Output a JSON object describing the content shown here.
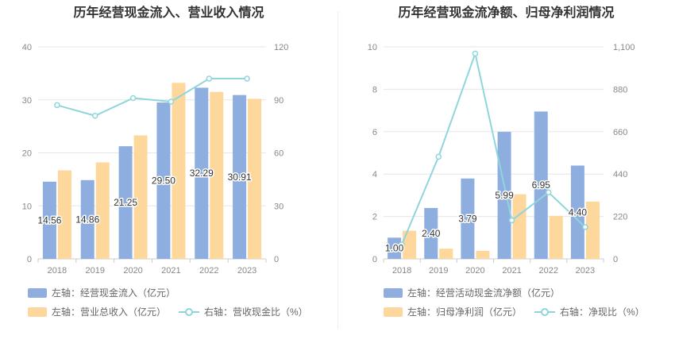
{
  "charts": [
    {
      "title": "历年经营现金流入、营业收入情况",
      "legend": {
        "bar1": "左轴：经营现金流入（亿元）",
        "bar2": "左轴：营业总收入（亿元）",
        "line": "右轴：营收现金比（%）"
      }
    },
    {
      "title": "历年经营现金流净额、归母净利润情况",
      "legend": {
        "bar1": "左轴：经营活动现金流净额（亿元）",
        "bar2": "左轴：归母净利润（亿元）",
        "line": "右轴：净现比（%）"
      }
    }
  ],
  "colors": {
    "bar1": "#8eaedf",
    "bar2": "#fdd79c",
    "line": "#8fd6dc",
    "grid": "#e6e6e6",
    "axis": "#cccccc",
    "tick": "#888888"
  },
  "chart_data": [
    {
      "type": "bar",
      "categories": [
        "2018",
        "2019",
        "2020",
        "2021",
        "2022",
        "2023"
      ],
      "series": [
        {
          "name": "左轴：经营现金流入（亿元）",
          "axis": "left",
          "values": [
            14.56,
            14.86,
            21.25,
            29.5,
            32.29,
            30.91
          ]
        },
        {
          "name": "左轴：营业总收入（亿元）",
          "axis": "left",
          "values": [
            16.7,
            18.2,
            23.3,
            33.2,
            31.5,
            30.2
          ]
        },
        {
          "name": "右轴：营收现金比（%）",
          "axis": "right",
          "type": "line",
          "values": [
            87,
            81,
            91,
            89,
            102,
            102
          ]
        }
      ],
      "data_labels": [
        "14.56",
        "14.86",
        "21.25",
        "29.50",
        "32.29",
        "30.91"
      ],
      "left_ticks": [
        "0",
        "10",
        "20",
        "30",
        "40"
      ],
      "right_ticks": [
        "0",
        "30",
        "60",
        "90",
        "120"
      ],
      "ylim_left": [
        0,
        40
      ],
      "ylim_right": [
        0,
        120
      ],
      "grid": true,
      "legend_position": "bottom"
    },
    {
      "type": "bar",
      "categories": [
        "2018",
        "2019",
        "2020",
        "2021",
        "2022",
        "2023"
      ],
      "series": [
        {
          "name": "左轴：经营活动现金流净额（亿元）",
          "axis": "left",
          "values": [
            1.0,
            2.4,
            3.79,
            5.99,
            6.95,
            4.4
          ]
        },
        {
          "name": "左轴：归母净利润（亿元）",
          "axis": "left",
          "values": [
            1.33,
            0.48,
            0.38,
            3.05,
            2.03,
            2.7
          ]
        },
        {
          "name": "右轴：净现比（%）",
          "axis": "right",
          "type": "line",
          "values": [
            75,
            530,
            1065,
            200,
            345,
            165
          ]
        }
      ],
      "data_labels": [
        "1.00",
        "2.40",
        "3.79",
        "5.99",
        "6.95",
        "4.40"
      ],
      "left_ticks": [
        "0",
        "2",
        "4",
        "6",
        "8",
        "10"
      ],
      "right_ticks": [
        "0",
        "220",
        "440",
        "660",
        "880",
        "1,100"
      ],
      "ylim_left": [
        0,
        10
      ],
      "ylim_right": [
        0,
        1100
      ],
      "grid": true,
      "legend_position": "bottom"
    }
  ]
}
